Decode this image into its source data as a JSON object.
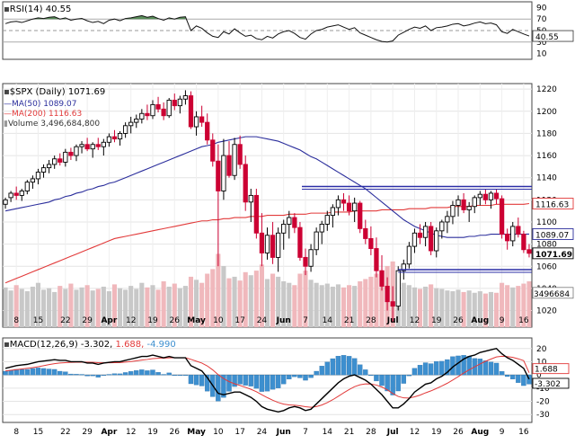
{
  "chart_data": {
    "type": "candlestick",
    "symbol_title": "$SPX (Daily) 1071.69",
    "x_labels": [
      "8",
      "15",
      "22",
      "29",
      "Apr",
      "12",
      "19",
      "26",
      "May",
      "10",
      "17",
      "24",
      "Jun",
      "7",
      "14",
      "21",
      "28",
      "Jul",
      "12",
      "19",
      "26",
      "Aug",
      "9",
      "16"
    ],
    "candles": [
      [
        1116,
        1122,
        1112,
        1120
      ],
      [
        1122,
        1128,
        1118,
        1126
      ],
      [
        1126,
        1132,
        1120,
        1124
      ],
      [
        1124,
        1130,
        1119,
        1128
      ],
      [
        1128,
        1138,
        1125,
        1136
      ],
      [
        1136,
        1142,
        1130,
        1139
      ],
      [
        1139,
        1148,
        1134,
        1145
      ],
      [
        1145,
        1152,
        1140,
        1149
      ],
      [
        1149,
        1156,
        1144,
        1152
      ],
      [
        1152,
        1160,
        1148,
        1157
      ],
      [
        1157,
        1162,
        1151,
        1154
      ],
      [
        1154,
        1166,
        1150,
        1163
      ],
      [
        1163,
        1167,
        1156,
        1160
      ],
      [
        1160,
        1170,
        1155,
        1168
      ],
      [
        1168,
        1173,
        1162,
        1170
      ],
      [
        1170,
        1176,
        1164,
        1166
      ],
      [
        1166,
        1172,
        1158,
        1170
      ],
      [
        1170,
        1176,
        1165,
        1168
      ],
      [
        1168,
        1175,
        1160,
        1172
      ],
      [
        1172,
        1180,
        1168,
        1177
      ],
      [
        1177,
        1183,
        1172,
        1175
      ],
      [
        1175,
        1182,
        1169,
        1180
      ],
      [
        1180,
        1190,
        1176,
        1187
      ],
      [
        1187,
        1195,
        1180,
        1190
      ],
      [
        1190,
        1197,
        1185,
        1193
      ],
      [
        1193,
        1202,
        1189,
        1198
      ],
      [
        1198,
        1206,
        1192,
        1196
      ],
      [
        1196,
        1210,
        1193,
        1206
      ],
      [
        1206,
        1213,
        1199,
        1202
      ],
      [
        1202,
        1208,
        1192,
        1196
      ],
      [
        1196,
        1212,
        1194,
        1210
      ],
      [
        1210,
        1216,
        1201,
        1205
      ],
      [
        1205,
        1214,
        1198,
        1211
      ],
      [
        1211,
        1219,
        1206,
        1214
      ],
      [
        1214,
        1218,
        1184,
        1186
      ],
      [
        1186,
        1200,
        1178,
        1195
      ],
      [
        1195,
        1205,
        1186,
        1190
      ],
      [
        1190,
        1198,
        1170,
        1174
      ],
      [
        1174,
        1180,
        1150,
        1155
      ],
      [
        1155,
        1170,
        1060,
        1128
      ],
      [
        1128,
        1175,
        1120,
        1160
      ],
      [
        1160,
        1173,
        1140,
        1142
      ],
      [
        1142,
        1176,
        1138,
        1170
      ],
      [
        1170,
        1178,
        1148,
        1152
      ],
      [
        1152,
        1160,
        1110,
        1118
      ],
      [
        1118,
        1130,
        1100,
        1124
      ],
      [
        1124,
        1130,
        1085,
        1090
      ],
      [
        1090,
        1108,
        1060,
        1072
      ],
      [
        1072,
        1095,
        1066,
        1088
      ],
      [
        1088,
        1100,
        1062,
        1068
      ],
      [
        1068,
        1095,
        1055,
        1090
      ],
      [
        1090,
        1102,
        1075,
        1098
      ],
      [
        1098,
        1110,
        1085,
        1104
      ],
      [
        1104,
        1108,
        1090,
        1095
      ],
      [
        1095,
        1100,
        1065,
        1068
      ],
      [
        1068,
        1076,
        1052,
        1060
      ],
      [
        1060,
        1080,
        1055,
        1075
      ],
      [
        1075,
        1095,
        1070,
        1091
      ],
      [
        1091,
        1101,
        1080,
        1098
      ],
      [
        1098,
        1110,
        1092,
        1106
      ],
      [
        1106,
        1116,
        1095,
        1113
      ],
      [
        1113,
        1124,
        1106,
        1120
      ],
      [
        1120,
        1126,
        1110,
        1117
      ],
      [
        1117,
        1124,
        1106,
        1110
      ],
      [
        1110,
        1122,
        1100,
        1117
      ],
      [
        1117,
        1119,
        1090,
        1094
      ],
      [
        1094,
        1102,
        1080,
        1085
      ],
      [
        1085,
        1096,
        1070,
        1076
      ],
      [
        1076,
        1086,
        1050,
        1056
      ],
      [
        1056,
        1070,
        1038,
        1042
      ],
      [
        1042,
        1050,
        1020,
        1028
      ],
      [
        1028,
        1042,
        1010,
        1024
      ],
      [
        1024,
        1060,
        1020,
        1056
      ],
      [
        1056,
        1066,
        1048,
        1062
      ],
      [
        1062,
        1082,
        1058,
        1078
      ],
      [
        1078,
        1094,
        1072,
        1090
      ],
      [
        1090,
        1098,
        1080,
        1086
      ],
      [
        1086,
        1100,
        1078,
        1096
      ],
      [
        1096,
        1100,
        1070,
        1074
      ],
      [
        1074,
        1095,
        1068,
        1092
      ],
      [
        1092,
        1102,
        1085,
        1100
      ],
      [
        1100,
        1110,
        1090,
        1105
      ],
      [
        1105,
        1119,
        1098,
        1115
      ],
      [
        1115,
        1124,
        1105,
        1120
      ],
      [
        1120,
        1126,
        1108,
        1111
      ],
      [
        1111,
        1118,
        1100,
        1114
      ],
      [
        1114,
        1124,
        1108,
        1122
      ],
      [
        1122,
        1128,
        1115,
        1125
      ],
      [
        1125,
        1130,
        1116,
        1120
      ],
      [
        1120,
        1128,
        1112,
        1126
      ],
      [
        1126,
        1130,
        1116,
        1121
      ],
      [
        1121,
        1124,
        1085,
        1089
      ],
      [
        1089,
        1094,
        1075,
        1083
      ],
      [
        1083,
        1100,
        1078,
        1096
      ],
      [
        1096,
        1104,
        1086,
        1089
      ],
      [
        1089,
        1092,
        1072,
        1075
      ],
      [
        1075,
        1080,
        1068,
        1071.69
      ]
    ],
    "volume": [
      52,
      48,
      55,
      50,
      47,
      53,
      58,
      49,
      51,
      46,
      54,
      50,
      57,
      49,
      52,
      55,
      48,
      50,
      53,
      47,
      56,
      51,
      49,
      54,
      50,
      58,
      52,
      55,
      49,
      60,
      53,
      57,
      51,
      54,
      66,
      62,
      58,
      70,
      76,
      96,
      80,
      64,
      66,
      61,
      72,
      68,
      74,
      82,
      63,
      70,
      66,
      60,
      58,
      55,
      70,
      74,
      62,
      58,
      55,
      57,
      53,
      56,
      52,
      55,
      54,
      60,
      63,
      66,
      70,
      74,
      80,
      86,
      65,
      58,
      55,
      52,
      50,
      53,
      56,
      51,
      50,
      48,
      47,
      49,
      46,
      48,
      45,
      47,
      44,
      46,
      45,
      58,
      55,
      52,
      54,
      57,
      60
    ],
    "ma50": [
      1110,
      1111,
      1112,
      1113,
      1114,
      1115,
      1116,
      1117,
      1118,
      1120,
      1121,
      1123,
      1124,
      1126,
      1127,
      1129,
      1130,
      1132,
      1133,
      1135,
      1136,
      1138,
      1140,
      1142,
      1144,
      1146,
      1148,
      1150,
      1152,
      1154,
      1156,
      1158,
      1160,
      1162,
      1164,
      1166,
      1168,
      1169,
      1170,
      1172,
      1173,
      1174,
      1175,
      1176,
      1177,
      1177,
      1177,
      1176,
      1175,
      1174,
      1173,
      1171,
      1169,
      1167,
      1165,
      1162,
      1159,
      1157,
      1154,
      1151,
      1148,
      1145,
      1142,
      1139,
      1136,
      1133,
      1130,
      1126,
      1122,
      1118,
      1114,
      1110,
      1106,
      1102,
      1099,
      1096,
      1094,
      1092,
      1090,
      1088,
      1087,
      1086,
      1086,
      1086,
      1086,
      1087,
      1087,
      1088,
      1088,
      1089,
      1089,
      1089,
      1089,
      1089,
      1089,
      1089,
      1089.07
    ],
    "ma200": [
      1045,
      1047,
      1049,
      1051,
      1053,
      1055,
      1057,
      1059,
      1061,
      1063,
      1065,
      1067,
      1069,
      1071,
      1073,
      1075,
      1077,
      1079,
      1081,
      1083,
      1085,
      1086,
      1087,
      1088,
      1089,
      1090,
      1091,
      1092,
      1093,
      1094,
      1095,
      1096,
      1097,
      1098,
      1099,
      1100,
      1101,
      1101,
      1102,
      1102,
      1103,
      1103,
      1104,
      1104,
      1104,
      1105,
      1105,
      1105,
      1106,
      1106,
      1106,
      1106,
      1107,
      1107,
      1107,
      1107,
      1108,
      1108,
      1108,
      1108,
      1109,
      1109,
      1109,
      1109,
      1110,
      1110,
      1110,
      1110,
      1110,
      1111,
      1111,
      1111,
      1111,
      1111,
      1112,
      1112,
      1112,
      1112,
      1113,
      1113,
      1113,
      1113,
      1114,
      1114,
      1114,
      1114,
      1115,
      1115,
      1115,
      1115,
      1116,
      1116,
      1116,
      1116,
      1116,
      1116,
      1116.63
    ],
    "rsi": [
      62,
      65,
      66,
      64,
      67,
      70,
      72,
      71,
      73,
      74,
      70,
      72,
      68,
      70,
      71,
      67,
      64,
      66,
      62,
      68,
      70,
      67,
      71,
      72,
      74,
      76,
      73,
      75,
      71,
      68,
      72,
      70,
      73,
      74,
      50,
      58,
      54,
      46,
      40,
      38,
      48,
      44,
      53,
      46,
      40,
      42,
      36,
      34,
      40,
      37,
      44,
      48,
      50,
      45,
      38,
      35,
      44,
      50,
      52,
      56,
      58,
      60,
      56,
      52,
      55,
      46,
      42,
      38,
      34,
      31,
      30,
      32,
      42,
      47,
      52,
      56,
      54,
      58,
      50,
      55,
      56,
      58,
      61,
      62,
      58,
      60,
      63,
      65,
      62,
      63,
      60,
      48,
      45,
      52,
      48,
      44,
      40.55
    ],
    "macd": [
      5,
      6,
      7,
      7.5,
      8,
      9,
      10,
      10.5,
      11,
      11.5,
      11,
      11,
      10,
      10,
      10,
      9,
      9,
      8,
      9,
      9.5,
      10,
      10,
      11,
      12,
      13,
      14,
      14,
      15,
      14,
      13,
      14,
      13,
      13,
      13,
      7,
      5,
      3,
      -2,
      -8,
      -14,
      -15,
      -14,
      -13,
      -13,
      -15,
      -17,
      -20,
      -24,
      -26,
      -27,
      -28,
      -27,
      -25,
      -24,
      -25,
      -27,
      -26,
      -22,
      -18,
      -14,
      -10,
      -6,
      -3,
      -1,
      0,
      -2,
      -4,
      -7,
      -11,
      -15,
      -20,
      -25,
      -25,
      -22,
      -18,
      -13,
      -10,
      -7,
      -6,
      -3,
      -1,
      2,
      6,
      9,
      12,
      14,
      15,
      17,
      18,
      19,
      20,
      16,
      13,
      11,
      8,
      5,
      -3.302
    ],
    "signal": [
      3,
      3.5,
      4,
      4.5,
      5,
      5.5,
      6.2,
      7,
      7.8,
      8.5,
      9,
      9.3,
      9.5,
      9.6,
      9.7,
      9.6,
      9.5,
      9.3,
      9.2,
      9.2,
      9.3,
      9.4,
      9.7,
      10.1,
      10.6,
      11.2,
      11.7,
      12.3,
      12.6,
      12.7,
      12.9,
      13,
      13,
      13,
      11.8,
      10.4,
      9,
      6.8,
      3.8,
      0.2,
      -2.8,
      -5.1,
      -6.7,
      -8,
      -9.4,
      -10.9,
      -12.7,
      -15,
      -17.2,
      -19.2,
      -20.9,
      -22.1,
      -22.7,
      -23,
      -23.4,
      -24.1,
      -24.5,
      -24,
      -22.8,
      -21,
      -18.8,
      -16.2,
      -13.6,
      -11.1,
      -8.9,
      -7.5,
      -6.8,
      -6.9,
      -7.7,
      -9.2,
      -11.3,
      -14.1,
      -16.3,
      -17.4,
      -17.5,
      -16.6,
      -15.3,
      -13.6,
      -12.1,
      -10.3,
      -8.4,
      -6.3,
      -3.9,
      -1.3,
      1.4,
      3.9,
      6.1,
      8.3,
      10.3,
      12,
      13.6,
      14.1,
      13.9,
      13.3,
      12.2,
      10.8,
      1.688
    ],
    "rsi_title": "RSI(14) 40.55",
    "rsi_ticks": [
      "90",
      "70",
      "50",
      "30",
      "10"
    ],
    "rsi_last": "40.55",
    "legend": {
      "ma50": "MA(50) 1089.07",
      "ma200": "MA(200) 1116.63",
      "volume": "Volume 3,496,684,800"
    },
    "price_ticks": [
      "1220",
      "1200",
      "1180",
      "1160",
      "1140",
      "1120",
      "1100",
      "1080",
      "1060",
      "1040",
      "1020"
    ],
    "price_tick_values": [
      1220,
      1200,
      1180,
      1160,
      1140,
      1120,
      1100,
      1080,
      1060,
      1040,
      1020
    ],
    "price_range": [
      1005,
      1225
    ],
    "price_tags": {
      "ma200": "1116.63",
      "ma50": "1089.07",
      "last": "1071.69",
      "volume": "3496684"
    },
    "resistance_level": 1132,
    "support_level": 1057,
    "macd_title_label": "MACD(12,26,9)",
    "macd_title_values": [
      "-3.302,",
      "1.688,",
      "-4.990"
    ],
    "macd_ticks": [
      "20",
      "10",
      "0",
      "-10",
      "-20",
      "-30"
    ],
    "macd_tick_values": [
      20,
      10,
      0,
      -10,
      -20,
      -30
    ],
    "macd_range": [
      -36,
      28
    ],
    "macd_tags": {
      "signal": "1.688",
      "macd": "-3.302"
    },
    "colors": {
      "up": "#000000",
      "down": "#cc0033",
      "ma50": "#2b2e9c",
      "ma200": "#e23a3a",
      "vol_up": "#c8c8c8",
      "vol_down": "#f0b8bc",
      "hist": "#3d8fcf",
      "hline": "#2b2ea6",
      "rsi": "#111111"
    }
  }
}
